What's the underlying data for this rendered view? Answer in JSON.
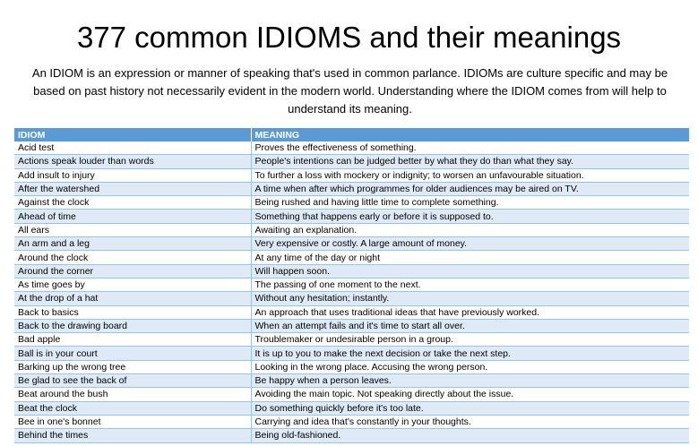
{
  "title": "377 common IDIOMS and their meanings",
  "intro": "An IDIOM is an expression or manner of speaking that's used in common parlance. IDIOMs are culture specific and may be based on past history not necessarily evident in the modern world. Understanding where the IDIOM comes from will help to understand its meaning.",
  "table": {
    "headers": [
      "IDIOM",
      "MEANING"
    ],
    "header_color": "#5b9bd5",
    "band_color": "#deeaf6",
    "rows": [
      [
        "Acid test",
        "Proves the effectiveness of something."
      ],
      [
        "Actions speak louder than words",
        "People's intentions can be judged better by what they do than what they say."
      ],
      [
        "Add insult to injury",
        "To further a loss with mockery or indignity; to worsen an unfavourable situation."
      ],
      [
        "After the watershed",
        "A time when after which programmes for older audiences may be aired on TV."
      ],
      [
        "Against the clock",
        "Being rushed and having little time to complete something."
      ],
      [
        "Ahead of time",
        "Something that happens early or before it is supposed to."
      ],
      [
        "All ears",
        "Awaiting an explanation."
      ],
      [
        "An arm and a leg",
        "Very expensive or costly. A large amount of money."
      ],
      [
        "Around the clock",
        "At any time of the day or night"
      ],
      [
        "Around the corner",
        "Will happen soon."
      ],
      [
        "As time goes by",
        "The passing of one moment to the next."
      ],
      [
        "At the drop of a hat",
        "Without any hesitation; instantly."
      ],
      [
        "Back to basics",
        "An approach that uses traditional ideas that have previously worked."
      ],
      [
        "Back to the drawing board",
        "When an attempt fails and it's time to start all over."
      ],
      [
        "Bad apple",
        "Troublemaker or undesirable person in a group."
      ],
      [
        "Ball is in your court",
        "It is up to you to make the next decision or take the next step."
      ],
      [
        "Barking up the wrong tree",
        "Looking in the wrong place. Accusing the wrong person."
      ],
      [
        "Be glad to see the back of",
        "Be happy when a person leaves."
      ],
      [
        "Beat around the bush",
        "Avoiding the main topic. Not speaking directly about the issue."
      ],
      [
        "Beat the clock",
        "Do something quickly before it's too late."
      ],
      [
        "Bee in one's bonnet",
        "Carrying and idea that's constantly in your thoughts."
      ],
      [
        "Behind the times",
        "Being old-fashioned."
      ]
    ]
  }
}
